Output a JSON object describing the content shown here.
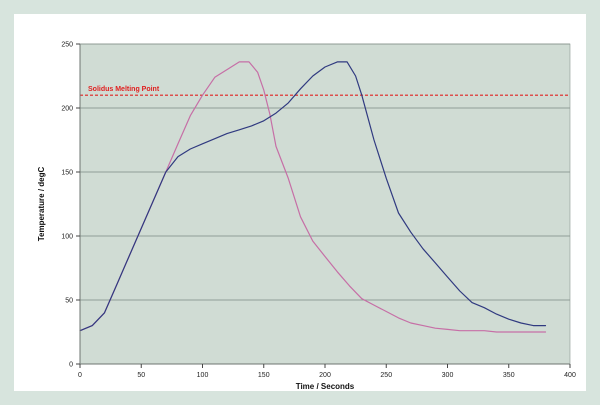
{
  "chart_data": {
    "type": "line",
    "title": "",
    "xlabel": "Time / Seconds",
    "ylabel": "Temperature / degC",
    "xlim": [
      0,
      400
    ],
    "ylim": [
      0,
      250
    ],
    "xticks": [
      0,
      50,
      100,
      150,
      200,
      250,
      300,
      350,
      400
    ],
    "yticks": [
      0,
      50,
      100,
      150,
      200,
      250
    ],
    "grid": "horizontal",
    "plot_background": "#d0dcd4",
    "gridline_color": "#7d8a83",
    "series": [
      {
        "color": "#c66fa6",
        "x": [
          0,
          10,
          20,
          30,
          40,
          50,
          60,
          70,
          80,
          90,
          100,
          110,
          120,
          130,
          138,
          145,
          150,
          155,
          160,
          170,
          180,
          190,
          200,
          210,
          220,
          230,
          240,
          250,
          260,
          270,
          280,
          290,
          300,
          310,
          320,
          330,
          340,
          350,
          360,
          370,
          380
        ],
        "y": [
          26,
          30,
          40,
          62,
          84,
          106,
          128,
          150,
          172,
          194,
          210,
          224,
          230,
          236,
          236,
          228,
          214,
          195,
          170,
          145,
          115,
          96,
          84,
          72,
          61,
          51,
          46,
          41,
          36,
          32,
          30,
          28,
          27,
          26,
          26,
          26,
          25,
          25,
          25,
          25,
          25
        ]
      },
      {
        "color": "#303a80",
        "x": [
          0,
          10,
          20,
          30,
          40,
          50,
          60,
          70,
          80,
          90,
          100,
          110,
          120,
          130,
          140,
          150,
          160,
          170,
          180,
          190,
          200,
          210,
          218,
          225,
          230,
          240,
          250,
          260,
          270,
          280,
          290,
          300,
          310,
          320,
          330,
          340,
          350,
          360,
          370,
          380
        ],
        "y": [
          26,
          30,
          40,
          62,
          84,
          106,
          128,
          150,
          162,
          168,
          172,
          176,
          180,
          183,
          186,
          190,
          196,
          204,
          215,
          225,
          232,
          236,
          236,
          225,
          210,
          175,
          145,
          118,
          103,
          90,
          79,
          68,
          57,
          48,
          44,
          39,
          35,
          32,
          30,
          30
        ]
      }
    ],
    "reference_lines": [
      {
        "label": "Solidus Melting Point",
        "y": 210,
        "color": "#e02020",
        "style": "dashed"
      }
    ]
  }
}
